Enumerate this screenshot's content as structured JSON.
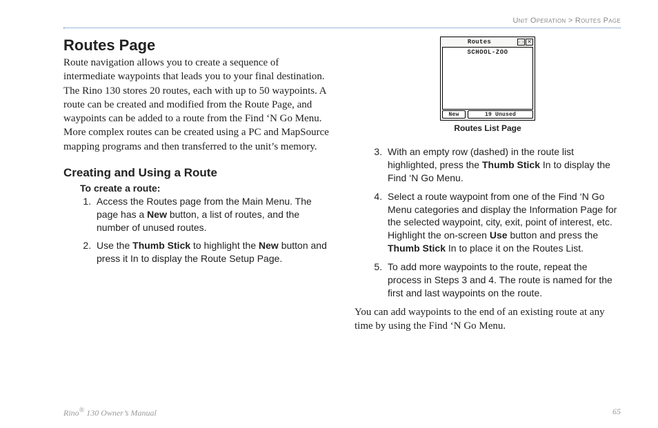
{
  "breadcrumb": {
    "section": "Unit Operation",
    "sep": ">",
    "page": "Routes Page"
  },
  "left": {
    "h1": "Routes Page",
    "intro": "Route navigation allows you to create a sequence of intermediate waypoints that leads you to your final destination. The Rino 130 stores 20 routes, each with up to 50 waypoints. A route can be created and modified from the Route Page, and waypoints can be added to a route from the Find ‘N Go Menu. More complex routes can be created using a PC and MapSource mapping programs and then transferred to the unit’s memory.",
    "h2": "Creating and Using a Route",
    "steps_title": "To create a route:",
    "steps": [
      {
        "pre": "Access the Routes page from the Main Menu. The page has a ",
        "b1": "New",
        "post": " button, a list of routes, and the number of unused routes."
      },
      {
        "pre": "Use the ",
        "b1": "Thumb Stick",
        "mid": " to highlight the ",
        "b2": "New",
        "post": " button and press it In to display the Route Setup Page."
      }
    ]
  },
  "right": {
    "figure": {
      "window_title": "Routes",
      "list_item": "SCHOOL-ZOO",
      "btn_new": "New",
      "btn_unused": "19 Unused",
      "caption": "Routes List Page",
      "winbox1": "▭",
      "winbox2": "✕"
    },
    "steps_start": 3,
    "steps": [
      {
        "pre": "With an empty row (dashed) in the route list highlighted, press the ",
        "b1": "Thumb Stick",
        "post": " In to display the Find ‘N Go Menu."
      },
      {
        "pre": "Select a route waypoint from one of the Find ‘N Go Menu categories and display the Information Page for the selected waypoint, city, exit, point of interest, etc. Highlight the on-screen ",
        "b1": "Use",
        "mid": " button and press the ",
        "b2": "Thumb Stick",
        "post": " In to place it on the Routes List."
      },
      {
        "pre": "To add more waypoints to the route, repeat the process in Steps 3 and 4. The route is named for the first and last waypoints on the route."
      }
    ],
    "closing": "You can add waypoints to the end of an existing route at any time by using the Find ‘N Go Menu."
  },
  "footer": {
    "left_pre": "Rino",
    "left_sup": "®",
    "left_post": " 130 Owner’s Manual",
    "page_num": "65"
  }
}
